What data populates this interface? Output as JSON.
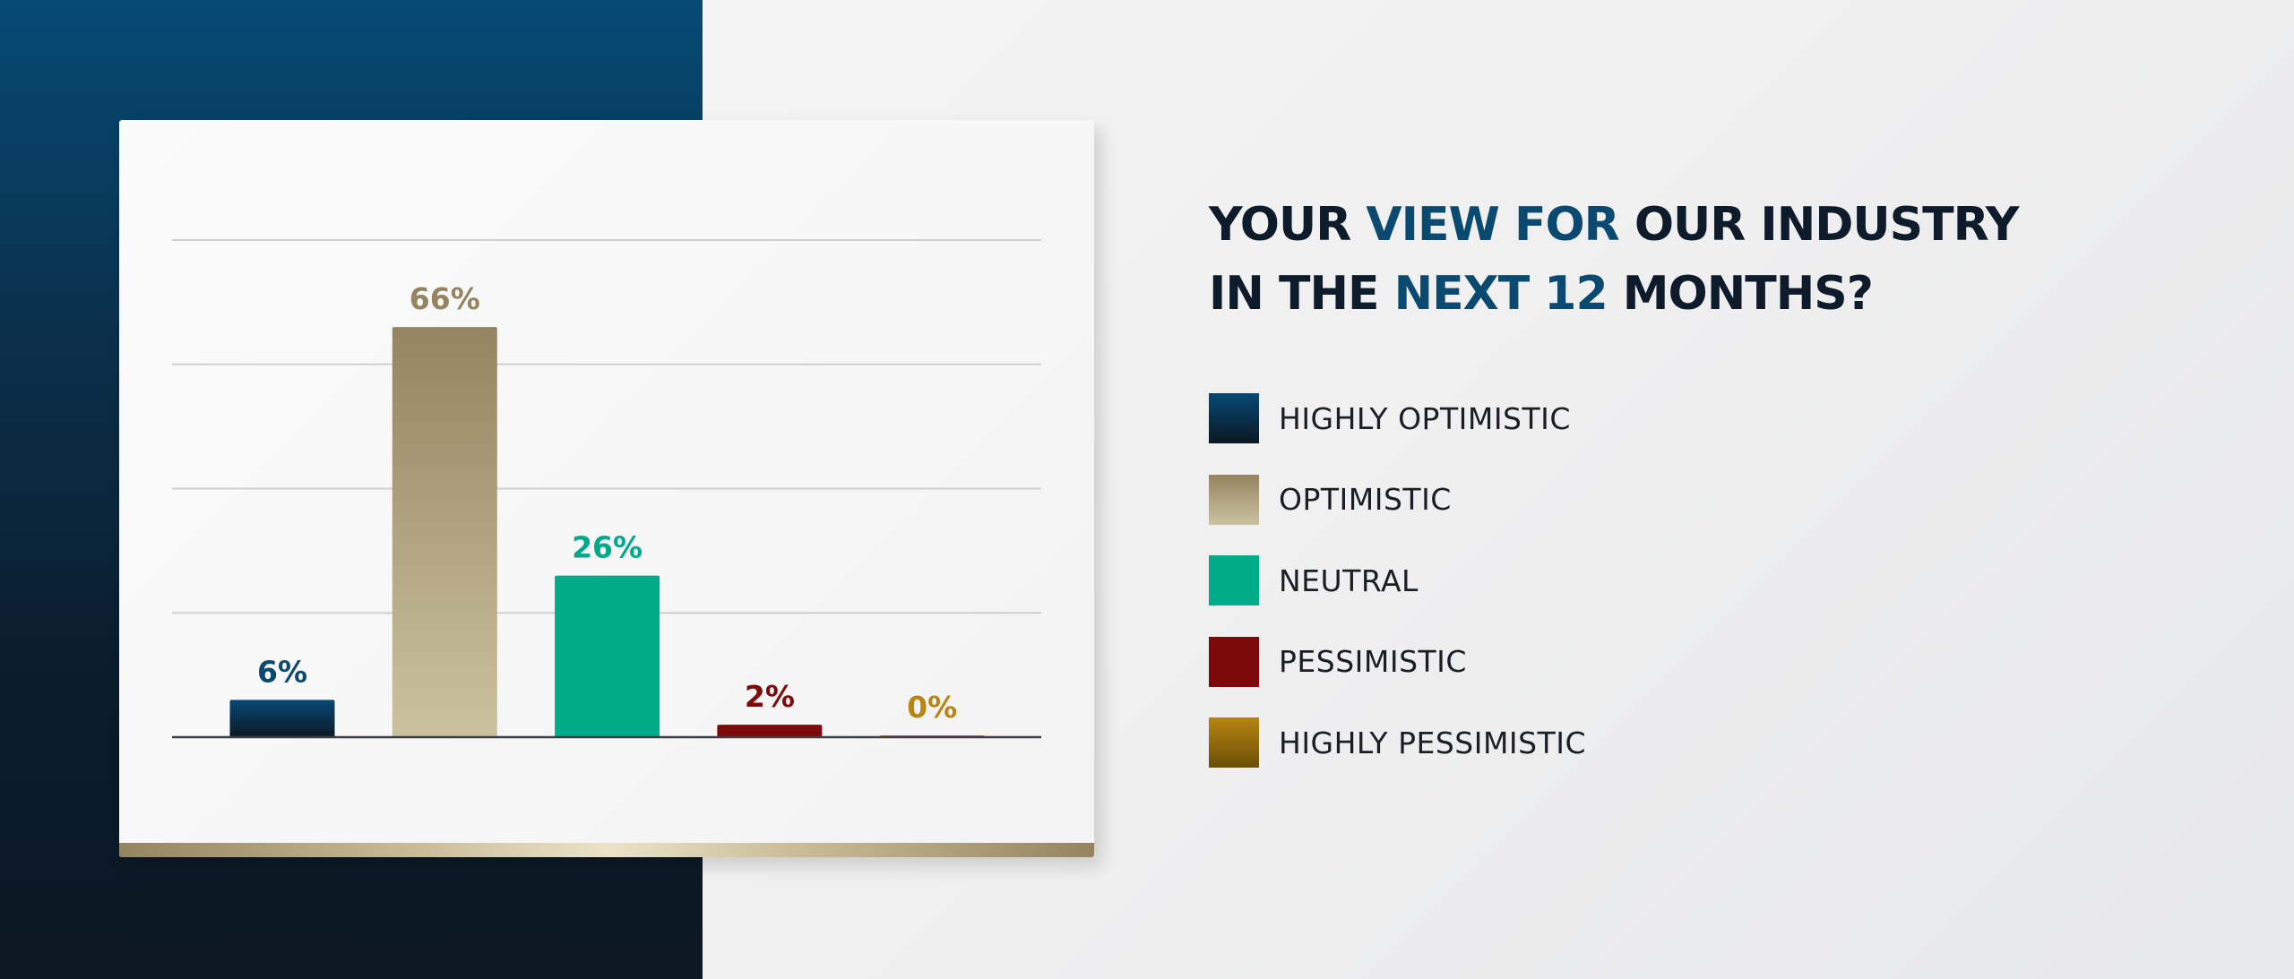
{
  "title": {
    "line1": [
      {
        "text": "YOUR ",
        "highlight": false
      },
      {
        "text": "VIEW FOR",
        "highlight": true
      },
      {
        "text": " OUR INDUSTRY",
        "highlight": false
      }
    ],
    "line2": [
      {
        "text": "IN THE ",
        "highlight": false
      },
      {
        "text": "NEXT 12",
        "highlight": true
      },
      {
        "text": " MONTHS?",
        "highlight": false
      }
    ]
  },
  "chart_data": {
    "type": "bar",
    "title": "YOUR VIEW FOR OUR INDUSTRY IN THE NEXT 12 MONTHS?",
    "categories": [
      "HIGHLY OPTIMISTIC",
      "OPTIMISTIC",
      "NEUTRAL",
      "PESSIMISTIC",
      "HIGHLY PESSIMISTIC"
    ],
    "values": [
      6,
      66,
      26,
      2,
      0
    ],
    "data_labels": [
      "6%",
      "66%",
      "26%",
      "2%",
      "0%"
    ],
    "colors": [
      {
        "top": "#064a75",
        "bottom": "#0b1823"
      },
      {
        "top": "#958460",
        "bottom": "#cbc29f"
      },
      {
        "top": "#00ab8a",
        "bottom": "#00ab8a"
      },
      {
        "top": "#7d0a0a",
        "bottom": "#7d0a0a"
      },
      {
        "top": "#b88511",
        "bottom": "#6b4f05"
      }
    ],
    "label_colors": [
      "#0b4a70",
      "#958460",
      "#00a98a",
      "#7d0a0a",
      "#b88511"
    ],
    "ylim": [
      0,
      80
    ],
    "gridlines": [
      20,
      40,
      60,
      80
    ],
    "grid": true,
    "xlabel": "",
    "ylabel": "",
    "legend_position": "right"
  }
}
